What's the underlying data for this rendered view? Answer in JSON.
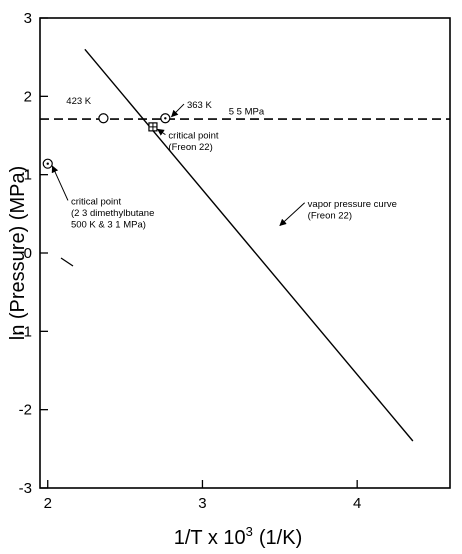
{
  "chart_data": {
    "type": "line",
    "xlabel": "1/T x 10",
    "xlabel_sup": "3",
    "xlabel_unit": "(1/K)",
    "ylabel": "ln (Pressure) (MPa)",
    "xlim": [
      1.95,
      4.6
    ],
    "ylim": [
      -3,
      3
    ],
    "xticks": [
      2,
      3,
      4
    ],
    "yticks": [
      -3,
      -2,
      -1,
      0,
      1,
      2,
      3
    ],
    "grid": false,
    "series": [
      {
        "style": "solid",
        "x": [
          2.24,
          4.36
        ],
        "y": [
          2.6,
          -2.4
        ]
      },
      {
        "style": "dashed",
        "x": [
          1.95,
          4.6
        ],
        "y": [
          1.71,
          1.71
        ]
      }
    ],
    "points": [
      {
        "id": "p423",
        "x": 2.36,
        "y": 1.72,
        "marker": "open-circle"
      },
      {
        "id": "p363",
        "x": 2.76,
        "y": 1.72,
        "marker": "dot-circle"
      },
      {
        "id": "pcrit-freon",
        "x": 2.68,
        "y": 1.61,
        "marker": "crossed-square"
      },
      {
        "id": "pcrit-dmb",
        "x": 2.0,
        "y": 1.14,
        "marker": "dot-circle"
      }
    ],
    "annotations": [
      {
        "id": "a423",
        "lines": [
          "423 K"
        ],
        "x": 2.12,
        "y": 1.9,
        "arrow": false
      },
      {
        "id": "a363",
        "lines": [
          "363 K"
        ],
        "x": 2.9,
        "y": 1.85,
        "arrow": true,
        "tx": 2.8,
        "ty": 1.74
      },
      {
        "id": "a55",
        "lines": [
          "5 5 MPa"
        ],
        "x": 3.17,
        "y": 1.77,
        "arrow": false
      },
      {
        "id": "acf",
        "lines": [
          "critical point",
          "(Freon 22)"
        ],
        "x": 2.78,
        "y": 1.46,
        "arrow": true,
        "tx": 2.71,
        "ty": 1.58
      },
      {
        "id": "acd",
        "lines": [
          "critical point",
          "(2 3  dimethylbutane",
          "500 K & 3 1 MPa)"
        ],
        "x": 2.15,
        "y": 0.62,
        "arrow": true,
        "tx": 2.03,
        "ty": 1.11
      },
      {
        "id": "avp",
        "lines": [
          "vapor pressure curve",
          "(Freon 22)"
        ],
        "x": 3.68,
        "y": 0.59,
        "arrow": true,
        "tx": 3.5,
        "ty": 0.35
      }
    ]
  }
}
